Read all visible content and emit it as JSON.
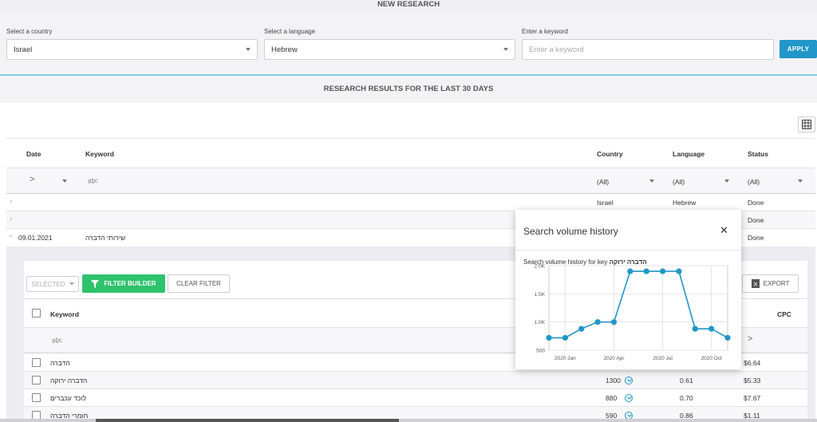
{
  "new_research": {
    "title": "NEW RESEARCH",
    "country_label": "Select a country",
    "country_value": "Israel",
    "language_label": "Select a language",
    "language_value": "Hebrew",
    "keyword_label": "Enter a keyword",
    "keyword_placeholder": "Enter a keyword",
    "apply_label": "APPLY"
  },
  "results": {
    "title": "RESEARCH RESULTS FOR THE LAST 30 DAYS",
    "columns": {
      "date": "Date",
      "keyword": "Keyword",
      "country": "Country",
      "language": "Language",
      "status": "Status"
    },
    "filters": {
      "date_op": ">",
      "keyword_icon": "a͍b͍c",
      "country": "(All)",
      "language": "(All)",
      "status": "(All)"
    },
    "rows": [
      {
        "date": "",
        "keyword": "",
        "country": "Israel",
        "language": "Hebrew",
        "status": "Done"
      },
      {
        "date": "",
        "keyword": "",
        "country": "",
        "language": "",
        "status": "Done"
      },
      {
        "date": "09.01.2021",
        "keyword": "שירותי הדברה",
        "country": "",
        "language": "",
        "status": "Done"
      }
    ]
  },
  "detail": {
    "selected_label": "SELECTED",
    "filter_builder_label": "FILTER BUILDER",
    "clear_filter_label": "CLEAR FILTER",
    "export_label": "EXPORT",
    "col_keyword": "Keyword",
    "col_cpc": "CPC",
    "filter_keyword_icon": "a͍b͍c",
    "filter_cpc_op": ">",
    "rows": [
      {
        "keyword": "הדברה",
        "volume": "",
        "competition": "",
        "cpc": "$6.64"
      },
      {
        "keyword": "הדברה ירוקה",
        "volume": "1300",
        "competition": "0.61",
        "cpc": "$5.33"
      },
      {
        "keyword": "לוכד עכברים",
        "volume": "880",
        "competition": "0.70",
        "cpc": "$7.67"
      },
      {
        "keyword": "חומרי הדברה",
        "volume": "590",
        "competition": "0.86",
        "cpc": "$1.11"
      }
    ]
  },
  "popup": {
    "title": "Search volume history",
    "subtitle_prefix": "Search volume history for key",
    "subtitle_key": "הדברה ירוקה",
    "close_glyph": "✕"
  },
  "chart_data": {
    "type": "line",
    "title": "",
    "xlabel": "",
    "ylabel": "",
    "x": [
      "2019-12",
      "2020-01",
      "2020-02",
      "2020-03",
      "2020-04",
      "2020-05",
      "2020-06",
      "2020-07",
      "2020-08",
      "2020-09",
      "2020-10",
      "2020-11"
    ],
    "values": [
      720,
      720,
      880,
      1000,
      1000,
      1900,
      1900,
      1900,
      1900,
      880,
      880,
      720
    ],
    "ylim": [
      500,
      2000
    ],
    "yticks": [
      500,
      1000,
      1500,
      2000
    ],
    "ytick_labels": [
      "500",
      "1.0K",
      "1.5K",
      "2.0K"
    ],
    "xticks": [
      "2020-01",
      "2020-04",
      "2020-07",
      "2020-10"
    ],
    "xtick_labels": [
      "2020 Jan",
      "2020 Apr",
      "2020 Jul",
      "2020 Oct"
    ],
    "grid": true,
    "color": "#2196c8"
  }
}
